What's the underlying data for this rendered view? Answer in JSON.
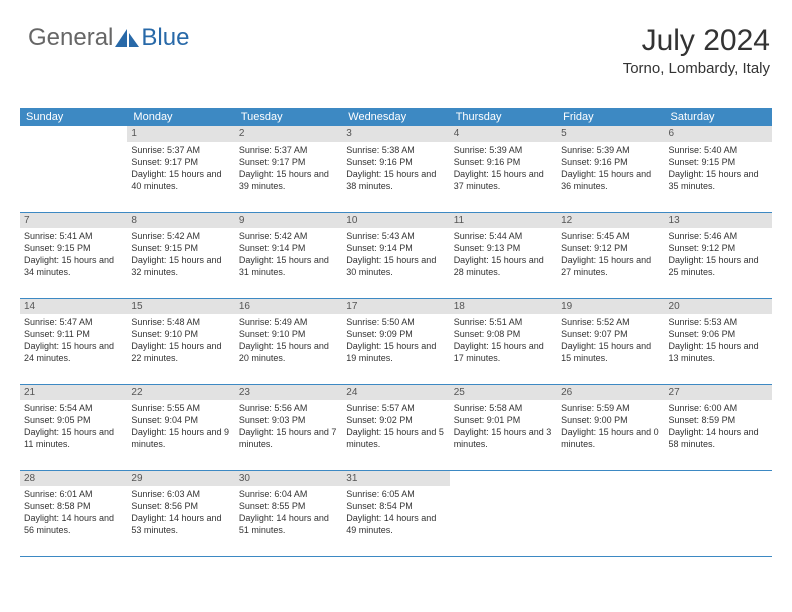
{
  "brand": {
    "word1": "General",
    "word2": "Blue"
  },
  "title": "July 2024",
  "location": "Torno, Lombardy, Italy",
  "colors": {
    "header_bg": "#3d89c3",
    "header_text": "#ffffff",
    "daynum_bg": "#e2e2e2",
    "brand_gray": "#666666",
    "brand_blue": "#2869a8",
    "cell_border": "#3d89c3"
  },
  "weekdays": [
    "Sunday",
    "Monday",
    "Tuesday",
    "Wednesday",
    "Thursday",
    "Friday",
    "Saturday"
  ],
  "weeks": [
    [
      null,
      {
        "n": "1",
        "sr": "Sunrise: 5:37 AM",
        "ss": "Sunset: 9:17 PM",
        "dl": "Daylight: 15 hours and 40 minutes."
      },
      {
        "n": "2",
        "sr": "Sunrise: 5:37 AM",
        "ss": "Sunset: 9:17 PM",
        "dl": "Daylight: 15 hours and 39 minutes."
      },
      {
        "n": "3",
        "sr": "Sunrise: 5:38 AM",
        "ss": "Sunset: 9:16 PM",
        "dl": "Daylight: 15 hours and 38 minutes."
      },
      {
        "n": "4",
        "sr": "Sunrise: 5:39 AM",
        "ss": "Sunset: 9:16 PM",
        "dl": "Daylight: 15 hours and 37 minutes."
      },
      {
        "n": "5",
        "sr": "Sunrise: 5:39 AM",
        "ss": "Sunset: 9:16 PM",
        "dl": "Daylight: 15 hours and 36 minutes."
      },
      {
        "n": "6",
        "sr": "Sunrise: 5:40 AM",
        "ss": "Sunset: 9:15 PM",
        "dl": "Daylight: 15 hours and 35 minutes."
      }
    ],
    [
      {
        "n": "7",
        "sr": "Sunrise: 5:41 AM",
        "ss": "Sunset: 9:15 PM",
        "dl": "Daylight: 15 hours and 34 minutes."
      },
      {
        "n": "8",
        "sr": "Sunrise: 5:42 AM",
        "ss": "Sunset: 9:15 PM",
        "dl": "Daylight: 15 hours and 32 minutes."
      },
      {
        "n": "9",
        "sr": "Sunrise: 5:42 AM",
        "ss": "Sunset: 9:14 PM",
        "dl": "Daylight: 15 hours and 31 minutes."
      },
      {
        "n": "10",
        "sr": "Sunrise: 5:43 AM",
        "ss": "Sunset: 9:14 PM",
        "dl": "Daylight: 15 hours and 30 minutes."
      },
      {
        "n": "11",
        "sr": "Sunrise: 5:44 AM",
        "ss": "Sunset: 9:13 PM",
        "dl": "Daylight: 15 hours and 28 minutes."
      },
      {
        "n": "12",
        "sr": "Sunrise: 5:45 AM",
        "ss": "Sunset: 9:12 PM",
        "dl": "Daylight: 15 hours and 27 minutes."
      },
      {
        "n": "13",
        "sr": "Sunrise: 5:46 AM",
        "ss": "Sunset: 9:12 PM",
        "dl": "Daylight: 15 hours and 25 minutes."
      }
    ],
    [
      {
        "n": "14",
        "sr": "Sunrise: 5:47 AM",
        "ss": "Sunset: 9:11 PM",
        "dl": "Daylight: 15 hours and 24 minutes."
      },
      {
        "n": "15",
        "sr": "Sunrise: 5:48 AM",
        "ss": "Sunset: 9:10 PM",
        "dl": "Daylight: 15 hours and 22 minutes."
      },
      {
        "n": "16",
        "sr": "Sunrise: 5:49 AM",
        "ss": "Sunset: 9:10 PM",
        "dl": "Daylight: 15 hours and 20 minutes."
      },
      {
        "n": "17",
        "sr": "Sunrise: 5:50 AM",
        "ss": "Sunset: 9:09 PM",
        "dl": "Daylight: 15 hours and 19 minutes."
      },
      {
        "n": "18",
        "sr": "Sunrise: 5:51 AM",
        "ss": "Sunset: 9:08 PM",
        "dl": "Daylight: 15 hours and 17 minutes."
      },
      {
        "n": "19",
        "sr": "Sunrise: 5:52 AM",
        "ss": "Sunset: 9:07 PM",
        "dl": "Daylight: 15 hours and 15 minutes."
      },
      {
        "n": "20",
        "sr": "Sunrise: 5:53 AM",
        "ss": "Sunset: 9:06 PM",
        "dl": "Daylight: 15 hours and 13 minutes."
      }
    ],
    [
      {
        "n": "21",
        "sr": "Sunrise: 5:54 AM",
        "ss": "Sunset: 9:05 PM",
        "dl": "Daylight: 15 hours and 11 minutes."
      },
      {
        "n": "22",
        "sr": "Sunrise: 5:55 AM",
        "ss": "Sunset: 9:04 PM",
        "dl": "Daylight: 15 hours and 9 minutes."
      },
      {
        "n": "23",
        "sr": "Sunrise: 5:56 AM",
        "ss": "Sunset: 9:03 PM",
        "dl": "Daylight: 15 hours and 7 minutes."
      },
      {
        "n": "24",
        "sr": "Sunrise: 5:57 AM",
        "ss": "Sunset: 9:02 PM",
        "dl": "Daylight: 15 hours and 5 minutes."
      },
      {
        "n": "25",
        "sr": "Sunrise: 5:58 AM",
        "ss": "Sunset: 9:01 PM",
        "dl": "Daylight: 15 hours and 3 minutes."
      },
      {
        "n": "26",
        "sr": "Sunrise: 5:59 AM",
        "ss": "Sunset: 9:00 PM",
        "dl": "Daylight: 15 hours and 0 minutes."
      },
      {
        "n": "27",
        "sr": "Sunrise: 6:00 AM",
        "ss": "Sunset: 8:59 PM",
        "dl": "Daylight: 14 hours and 58 minutes."
      }
    ],
    [
      {
        "n": "28",
        "sr": "Sunrise: 6:01 AM",
        "ss": "Sunset: 8:58 PM",
        "dl": "Daylight: 14 hours and 56 minutes."
      },
      {
        "n": "29",
        "sr": "Sunrise: 6:03 AM",
        "ss": "Sunset: 8:56 PM",
        "dl": "Daylight: 14 hours and 53 minutes."
      },
      {
        "n": "30",
        "sr": "Sunrise: 6:04 AM",
        "ss": "Sunset: 8:55 PM",
        "dl": "Daylight: 14 hours and 51 minutes."
      },
      {
        "n": "31",
        "sr": "Sunrise: 6:05 AM",
        "ss": "Sunset: 8:54 PM",
        "dl": "Daylight: 14 hours and 49 minutes."
      },
      null,
      null,
      null
    ]
  ]
}
